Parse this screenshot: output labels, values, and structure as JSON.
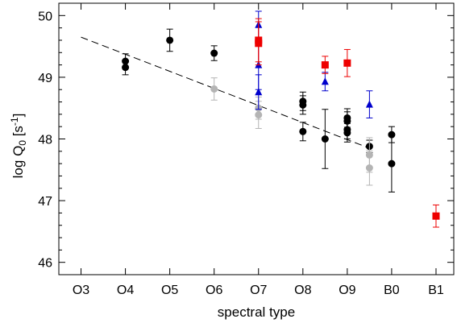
{
  "chart_data": {
    "type": "scatter",
    "xlabel": "spectral type",
    "ylabel": "log Q₀ [s⁻¹]",
    "ylabel_parts": {
      "base": "log Q",
      "sub": "0",
      "mid": " [s",
      "sup": "-1",
      "end": "]"
    },
    "x_categories": [
      "O3",
      "O4",
      "O5",
      "O6",
      "O7",
      "O8",
      "O9",
      "B0",
      "B1"
    ],
    "xlim": [
      2.5,
      11.4
    ],
    "ylim": [
      45.8,
      50.2
    ],
    "y_ticks": [
      46,
      47,
      48,
      49,
      50
    ],
    "grid": false,
    "legend": "none",
    "trend_line": {
      "x": [
        3,
        9.5
      ],
      "y": [
        49.65,
        47.85
      ],
      "color": "#000000",
      "dash": "dashed"
    },
    "series": [
      {
        "marker": "circle",
        "color": "#000000",
        "points": [
          {
            "x": 4,
            "y": 49.26,
            "err": 0.12
          },
          {
            "x": 4,
            "y": 49.16,
            "err": 0.12
          },
          {
            "x": 5,
            "y": 49.6,
            "err": 0.18
          },
          {
            "x": 6,
            "y": 49.39,
            "err": 0.12
          },
          {
            "x": 8,
            "y": 48.61,
            "err": 0.15
          },
          {
            "x": 8,
            "y": 48.55,
            "err": 0.15
          },
          {
            "x": 8,
            "y": 48.12,
            "err": 0.15
          },
          {
            "x": 8.5,
            "y": 48.0,
            "err": 0.48
          },
          {
            "x": 9,
            "y": 48.34,
            "err": 0.15
          },
          {
            "x": 9,
            "y": 48.29,
            "err": 0.15
          },
          {
            "x": 9,
            "y": 48.15,
            "err": 0.15
          },
          {
            "x": 9,
            "y": 48.1,
            "err": 0.15
          },
          {
            "x": 9.5,
            "y": 47.88,
            "err": 0.1
          },
          {
            "x": 10,
            "y": 48.07,
            "err": 0.13
          },
          {
            "x": 10,
            "y": 47.6,
            "err": 0.46
          }
        ]
      },
      {
        "marker": "circle",
        "color": "#b4b4b4",
        "points": [
          {
            "x": 6,
            "y": 48.81,
            "err": 0.18
          },
          {
            "x": 7,
            "y": 48.5,
            "err": 0.18
          },
          {
            "x": 7,
            "y": 48.39,
            "err": 0.22
          },
          {
            "x": 9.5,
            "y": 47.74,
            "err": 0.28
          },
          {
            "x": 9.5,
            "y": 47.53,
            "err": 0.28
          }
        ]
      },
      {
        "marker": "triangle",
        "color": "#0000cc",
        "points": [
          {
            "x": 7,
            "y": 49.85,
            "err": 0.22
          },
          {
            "x": 7,
            "y": 49.2,
            "err": 0.4
          },
          {
            "x": 7,
            "y": 48.76,
            "err": 0.28
          },
          {
            "x": 8.5,
            "y": 48.93,
            "err": 0.15
          },
          {
            "x": 9.5,
            "y": 48.56,
            "err": 0.22
          }
        ]
      },
      {
        "marker": "square",
        "color": "#ee0000",
        "points": [
          {
            "x": 7,
            "y": 49.6,
            "err": 0.35
          },
          {
            "x": 7,
            "y": 49.55,
            "err": 0.35
          },
          {
            "x": 8.5,
            "y": 49.2,
            "err": 0.14
          },
          {
            "x": 9,
            "y": 49.23,
            "err": 0.22
          },
          {
            "x": 11,
            "y": 46.75,
            "err": 0.18
          }
        ]
      }
    ]
  }
}
